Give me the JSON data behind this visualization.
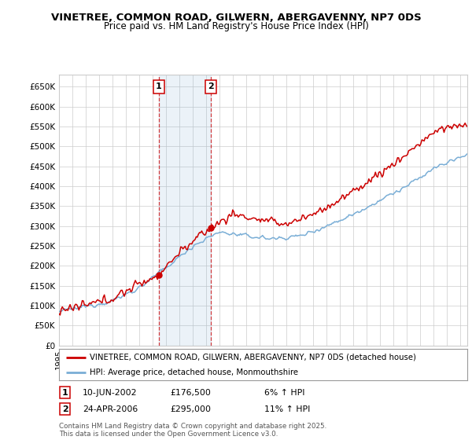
{
  "title": "VINETREE, COMMON ROAD, GILWERN, ABERGAVENNY, NP7 0DS",
  "subtitle": "Price paid vs. HM Land Registry's House Price Index (HPI)",
  "ylim": [
    0,
    680000
  ],
  "yticks": [
    0,
    50000,
    100000,
    150000,
    200000,
    250000,
    300000,
    350000,
    400000,
    450000,
    500000,
    550000,
    600000,
    650000
  ],
  "ytick_labels": [
    "£0",
    "£50K",
    "£100K",
    "£150K",
    "£200K",
    "£250K",
    "£300K",
    "£350K",
    "£400K",
    "£450K",
    "£500K",
    "£550K",
    "£600K",
    "£650K"
  ],
  "house_color": "#cc0000",
  "hpi_color": "#7aaed6",
  "background_color": "#ffffff",
  "grid_color": "#cccccc",
  "purchase1_x": 2002.44,
  "purchase1_label": "1",
  "purchase1_price": 176500,
  "purchase1_date": "10-JUN-2002",
  "purchase1_hpi": "6% ↑ HPI",
  "purchase2_x": 2006.32,
  "purchase2_label": "2",
  "purchase2_price": 295000,
  "purchase2_date": "24-APR-2006",
  "purchase2_hpi": "11% ↑ HPI",
  "legend_house": "VINETREE, COMMON ROAD, GILWERN, ABERGAVENNY, NP7 0DS (detached house)",
  "legend_hpi": "HPI: Average price, detached house, Monmouthshire",
  "footer": "Contains HM Land Registry data © Crown copyright and database right 2025.\nThis data is licensed under the Open Government Licence v3.0.",
  "xmin": 1995,
  "xmax": 2025.5
}
